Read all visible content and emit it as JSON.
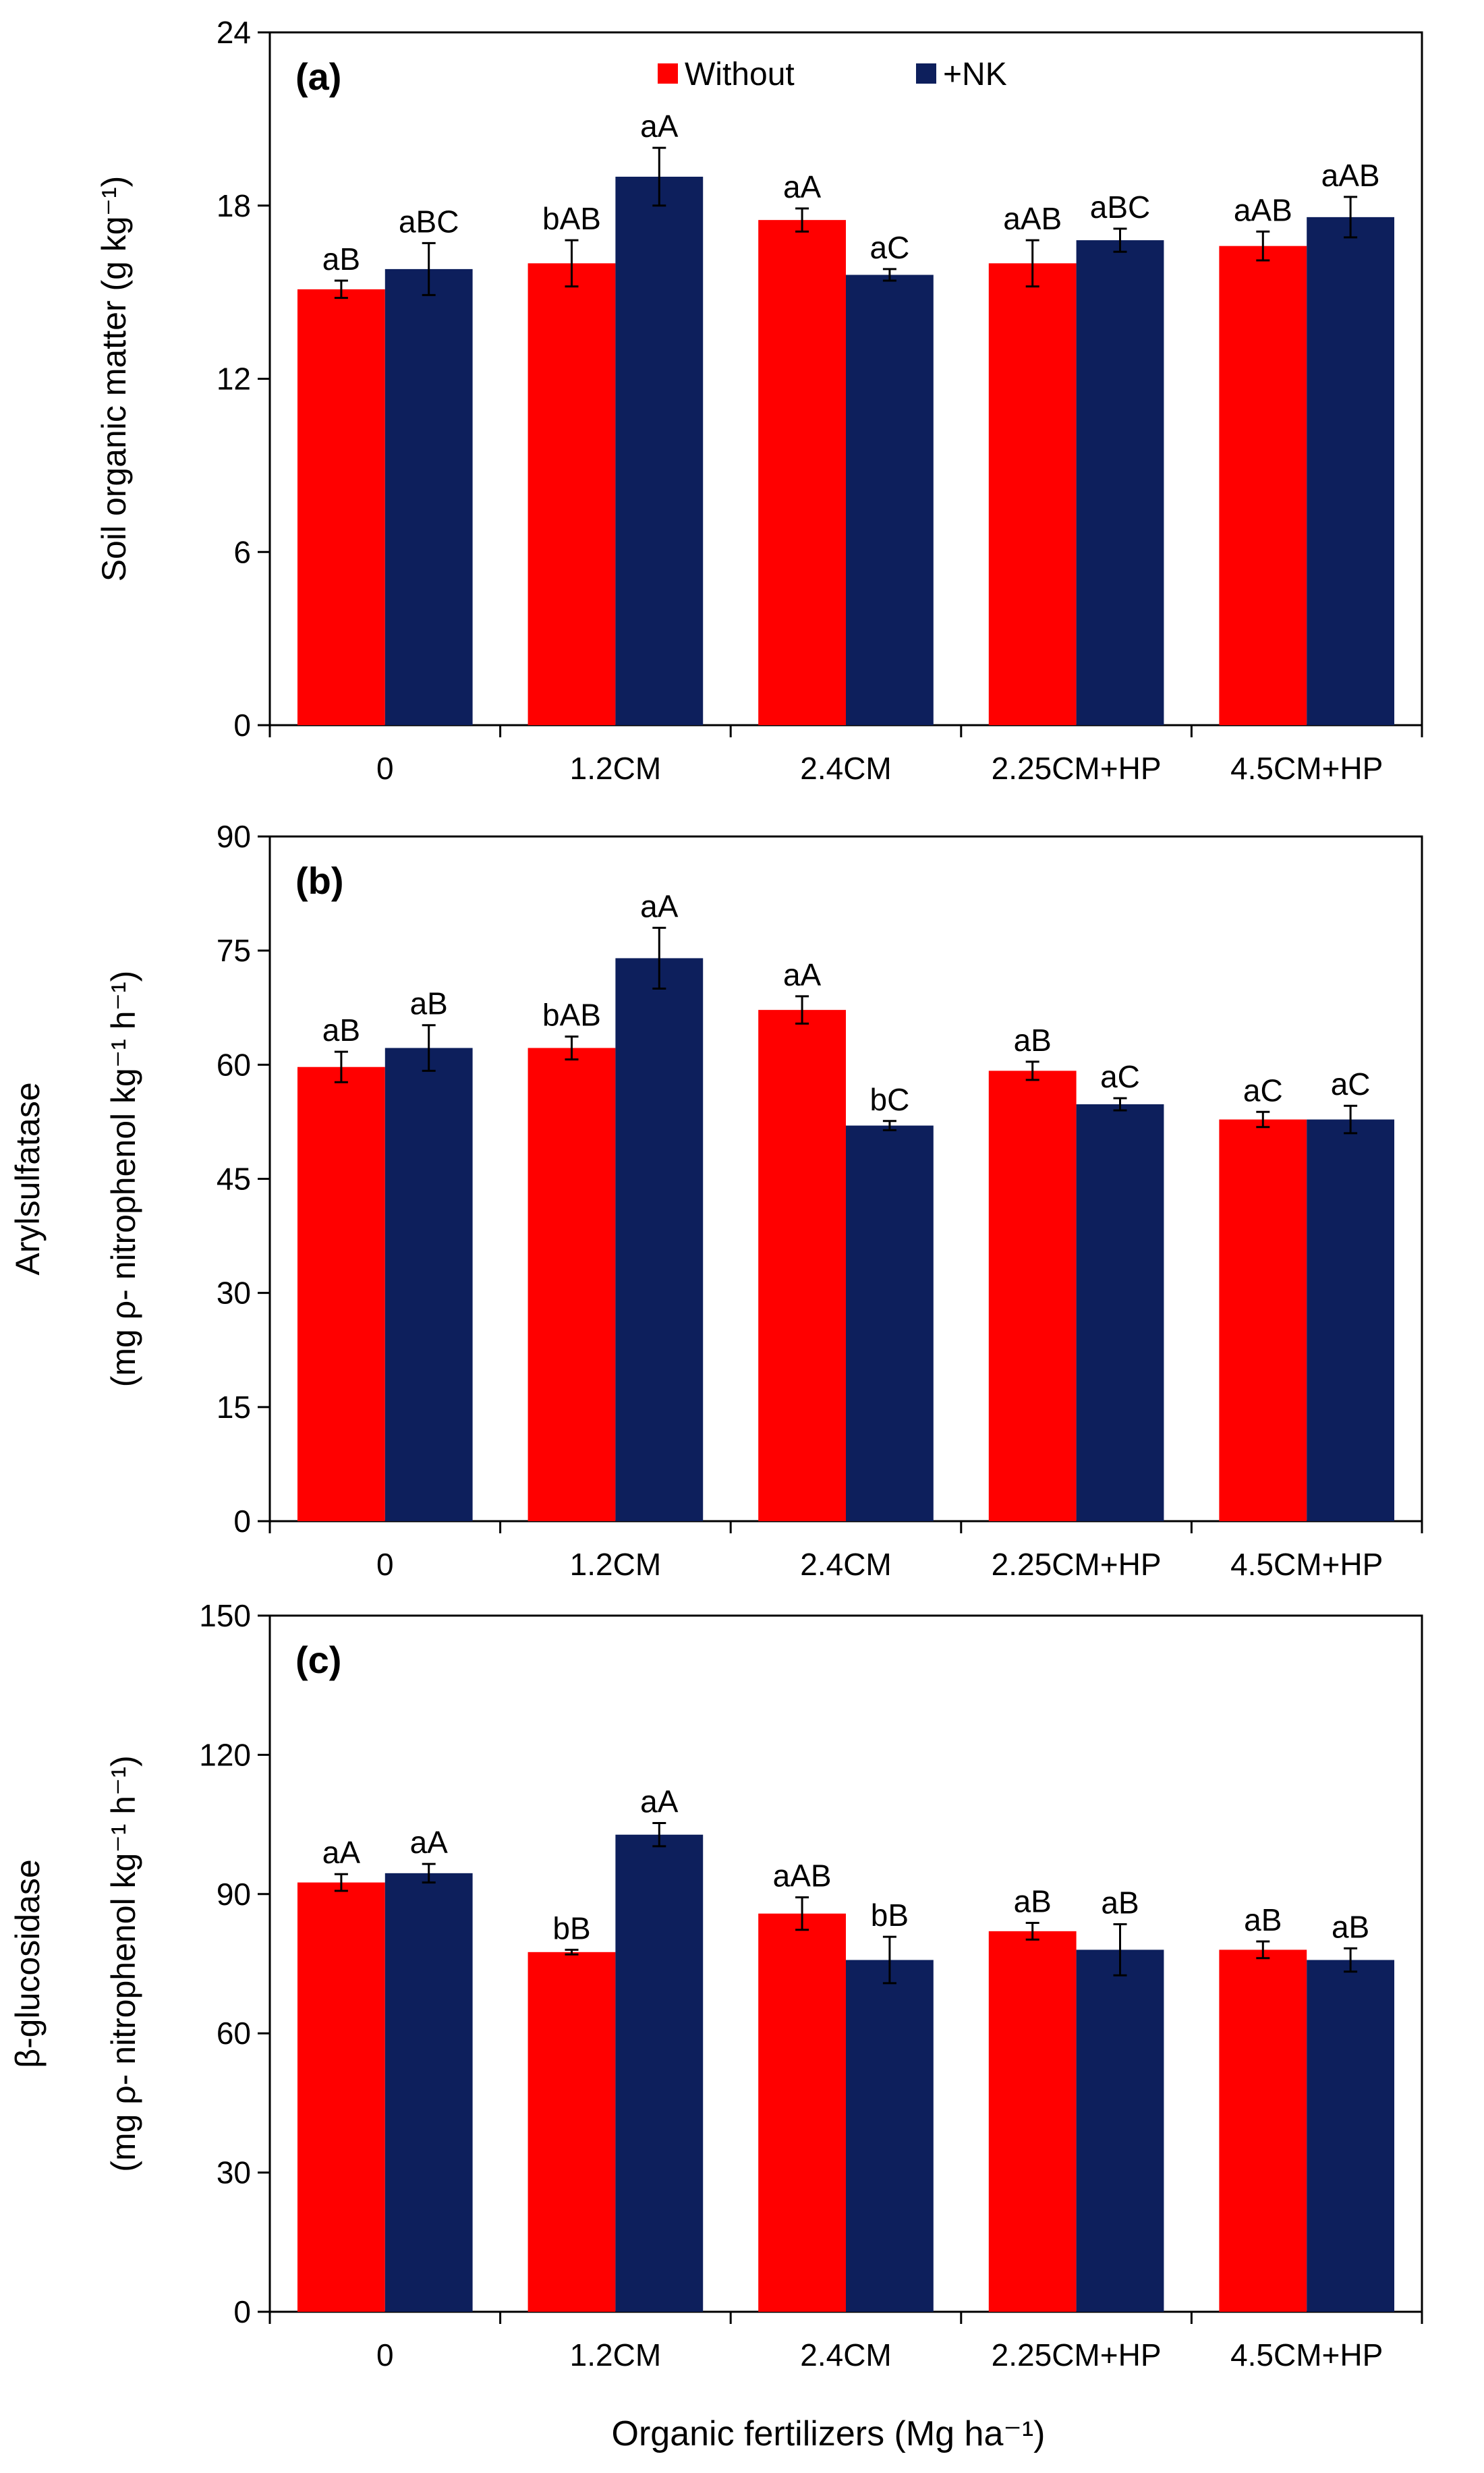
{
  "figure": {
    "xlabel": "Organic fertilizers (Mg ha⁻¹)"
  },
  "colors": {
    "without": "#ff0000",
    "nk": "#0d1f5c"
  },
  "chart_data": [
    {
      "type": "bar",
      "panel_label": "(a)",
      "title": "",
      "ylabel_lines": [
        "Soil organic matter (g kg⁻¹)"
      ],
      "categories": [
        "0",
        "1.2CM",
        "2.4CM",
        "2.25CM+HP",
        "4.5CM+HP"
      ],
      "ylim": [
        0,
        24
      ],
      "yticks": [
        0,
        6,
        12,
        18,
        24
      ],
      "legend": {
        "entries": [
          "Without",
          "+NK"
        ],
        "placement": "top-center"
      },
      "series": [
        {
          "name": "Without",
          "values": [
            15.1,
            16.0,
            17.5,
            16.0,
            16.6
          ],
          "errors": [
            0.3,
            0.8,
            0.4,
            0.8,
            0.5
          ],
          "labels": [
            "aB",
            "bAB",
            "aA",
            "aAB",
            "aAB"
          ]
        },
        {
          "name": "+NK",
          "values": [
            15.8,
            19.0,
            15.6,
            16.8,
            17.6
          ],
          "errors": [
            0.9,
            1.0,
            0.2,
            0.4,
            0.7
          ],
          "labels": [
            "aBC",
            "aA",
            "aC",
            "aBC",
            "aAB"
          ]
        }
      ]
    },
    {
      "type": "bar",
      "panel_label": "(b)",
      "title": "",
      "ylabel_lines": [
        "Arylsulfatase",
        "(mg ρ- nitrophenol kg⁻¹ h⁻¹)"
      ],
      "categories": [
        "0",
        "1.2CM",
        "2.4CM",
        "2.25CM+HP",
        "4.5CM+HP"
      ],
      "ylim": [
        0,
        90
      ],
      "yticks": [
        0,
        15,
        30,
        45,
        60,
        75,
        90
      ],
      "series": [
        {
          "name": "Without",
          "values": [
            59.7,
            62.2,
            67.2,
            59.2,
            52.8
          ],
          "errors": [
            2.0,
            1.5,
            1.8,
            1.2,
            1.0
          ],
          "labels": [
            "aB",
            "bAB",
            "aA",
            "aB",
            "aC"
          ]
        },
        {
          "name": "+NK",
          "values": [
            62.2,
            74.0,
            52.0,
            54.8,
            52.8
          ],
          "errors": [
            3.0,
            4.0,
            0.6,
            0.8,
            1.8
          ],
          "labels": [
            "aB",
            "aA",
            "bC",
            "aC",
            "aC"
          ]
        }
      ]
    },
    {
      "type": "bar",
      "panel_label": "(c)",
      "title": "",
      "ylabel_lines": [
        "β-glucosidase",
        "(mg ρ- nitrophenol kg⁻¹ h⁻¹)"
      ],
      "categories": [
        "0",
        "1.2CM",
        "2.4CM",
        "2.25CM+HP",
        "4.5CM+HP"
      ],
      "ylim": [
        0,
        150
      ],
      "yticks": [
        0,
        30,
        60,
        90,
        120,
        150
      ],
      "series": [
        {
          "name": "Without",
          "values": [
            92.5,
            77.5,
            85.8,
            82.0,
            78.0
          ],
          "errors": [
            1.8,
            0.5,
            3.5,
            1.8,
            1.8
          ],
          "labels": [
            "aA",
            "bB",
            "aAB",
            "aB",
            "aB"
          ]
        },
        {
          "name": "+NK",
          "values": [
            94.5,
            102.8,
            75.8,
            78.0,
            75.8
          ],
          "errors": [
            2.0,
            2.5,
            5.0,
            5.5,
            2.5
          ],
          "labels": [
            "aA",
            "aA",
            "bB",
            "aB",
            "aB"
          ]
        }
      ]
    }
  ]
}
